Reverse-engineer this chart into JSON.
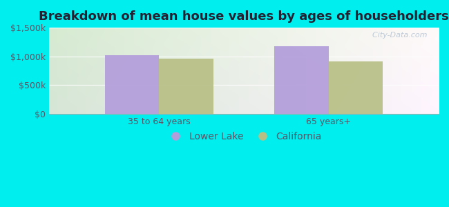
{
  "title": "Breakdown of mean house values by ages of householders",
  "categories": [
    "35 to 64 years",
    "65 years+"
  ],
  "lower_lake_values": [
    1020000,
    1175000
  ],
  "california_values": [
    960000,
    910000
  ],
  "lower_lake_color": "#b39ddb",
  "california_color": "#b8bf85",
  "background_color": "#00eeee",
  "ylim": [
    0,
    1500000
  ],
  "yticks": [
    0,
    500000,
    1000000,
    1500000
  ],
  "ytick_labels": [
    "$0",
    "$500k",
    "$1,000k",
    "$1,500k"
  ],
  "bar_width": 0.32,
  "legend_labels": [
    "Lower Lake",
    "California"
  ],
  "title_fontsize": 13,
  "tick_fontsize": 9,
  "legend_fontsize": 10,
  "watermark": "  City-Data.com",
  "text_color": "#555566"
}
